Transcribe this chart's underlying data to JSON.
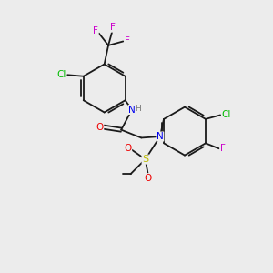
{
  "bg_color": "#ececec",
  "bond_color": "#1a1a1a",
  "bond_width": 1.3,
  "atom_colors": {
    "C": "#1a1a1a",
    "N": "#0000ee",
    "O": "#ee0000",
    "F": "#cc00cc",
    "Cl": "#00bb00",
    "S": "#bbbb00",
    "H": "#777777"
  },
  "font_size": 7.0
}
